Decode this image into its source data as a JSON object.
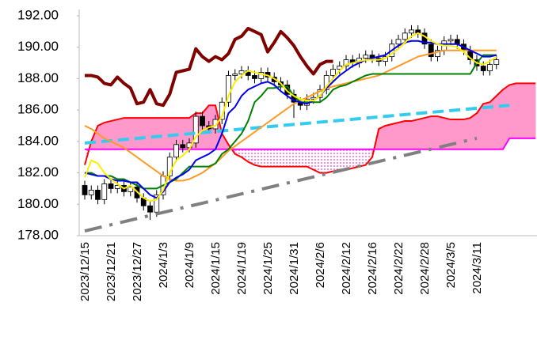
{
  "chart_data": {
    "type": "candlestick",
    "categories": [
      "2023/12/15",
      null,
      null,
      null,
      "2023/12/21",
      null,
      null,
      null,
      "2023/12/27",
      null,
      null,
      null,
      "2024/1/3",
      null,
      null,
      null,
      "2024/1/9",
      null,
      null,
      null,
      "2024/1/15",
      null,
      null,
      null,
      "2024/1/19",
      null,
      null,
      null,
      "2024/1/25",
      null,
      null,
      null,
      "2024/1/31",
      null,
      null,
      null,
      "2024/2/6",
      null,
      null,
      null,
      "2024/2/12",
      null,
      null,
      null,
      "2024/2/16",
      null,
      null,
      null,
      "2024/2/22",
      null,
      null,
      null,
      "2024/2/28",
      null,
      null,
      null,
      "2024/3/5",
      null,
      null,
      null,
      "2024/3/11",
      null,
      null,
      null,
      null,
      null,
      null,
      null,
      null,
      null
    ],
    "ylim": [
      178,
      192
    ],
    "yticks": [
      {
        "value": 178,
        "label": "178.00"
      },
      {
        "value": 180,
        "label": "180.00"
      },
      {
        "value": 182,
        "label": "182.00"
      },
      {
        "value": 184,
        "label": "184.00"
      },
      {
        "value": 186,
        "label": "186.00"
      },
      {
        "value": 188,
        "label": "188.00"
      },
      {
        "value": 190,
        "label": "190.00"
      },
      {
        "value": 192,
        "label": "192.00"
      }
    ],
    "candles": {
      "up_color": "#ffffff",
      "down_color": "#000000",
      "edge_color": "#000000",
      "open": [
        181.2,
        180.6,
        180.9,
        180.3,
        181.3,
        181.0,
        181.2,
        180.8,
        181.1,
        180.4,
        179.9,
        179.5,
        180.6,
        181.8,
        183.0,
        183.8,
        183.6,
        183.9,
        185.6,
        185.0,
        184.8,
        185.4,
        186.5,
        188.2,
        188.3,
        188.5,
        188.2,
        188.0,
        188.4,
        188.1,
        187.8,
        187.6,
        187.0,
        186.5,
        186.3,
        186.7,
        186.8,
        187.3,
        188.2,
        188.6,
        188.8,
        189.2,
        189.0,
        189.3,
        189.5,
        189.3,
        189.1,
        189.4,
        190.2,
        190.5,
        190.9,
        191.1,
        190.9,
        190.2,
        189.4,
        189.8,
        190.4,
        190.5,
        190.2,
        189.8,
        189.2,
        188.8,
        188.5,
        188.9,
        null,
        null,
        null,
        null,
        null,
        null
      ],
      "high": [
        181.5,
        181.2,
        181.2,
        181.6,
        181.6,
        181.5,
        181.5,
        181.4,
        181.4,
        180.7,
        180.2,
        180.9,
        182.1,
        183.3,
        184.1,
        184.1,
        184.2,
        185.9,
        185.9,
        185.3,
        185.7,
        186.8,
        188.5,
        188.6,
        188.8,
        188.8,
        188.5,
        188.7,
        188.7,
        188.4,
        188.1,
        187.9,
        187.3,
        186.8,
        187.0,
        187.1,
        187.6,
        188.5,
        188.9,
        189.1,
        189.5,
        189.5,
        189.6,
        189.8,
        189.8,
        189.6,
        189.7,
        190.5,
        190.8,
        191.2,
        191.4,
        191.4,
        191.2,
        190.5,
        190.1,
        190.7,
        190.8,
        190.8,
        190.5,
        190.1,
        189.5,
        189.1,
        189.2,
        189.5,
        null,
        null,
        null,
        null,
        null,
        null
      ],
      "low": [
        180.3,
        180.3,
        180.0,
        180.0,
        180.7,
        180.7,
        180.5,
        180.5,
        180.1,
        179.6,
        179.0,
        179.2,
        180.3,
        181.5,
        182.7,
        183.3,
        183.3,
        183.6,
        184.7,
        184.5,
        184.5,
        185.1,
        186.2,
        187.9,
        188.0,
        187.9,
        187.7,
        187.7,
        187.8,
        187.5,
        187.3,
        186.7,
        185.5,
        186.0,
        186.0,
        186.4,
        186.5,
        187.0,
        187.9,
        188.3,
        188.5,
        188.7,
        188.7,
        189.0,
        189.0,
        188.8,
        188.8,
        189.1,
        189.9,
        190.2,
        190.6,
        190.6,
        189.9,
        189.1,
        189.1,
        189.5,
        190.1,
        189.9,
        189.5,
        188.9,
        188.5,
        188.2,
        188.2,
        188.6,
        null,
        null,
        null,
        null,
        null,
        null
      ],
      "close": [
        180.6,
        180.9,
        180.3,
        181.3,
        181.0,
        181.2,
        180.8,
        181.1,
        180.4,
        179.9,
        179.5,
        180.6,
        181.8,
        183.0,
        183.8,
        183.6,
        183.9,
        185.6,
        185.0,
        184.8,
        185.4,
        186.5,
        188.2,
        188.3,
        188.5,
        188.2,
        188.0,
        188.4,
        188.1,
        187.8,
        187.6,
        187.0,
        186.5,
        186.3,
        186.7,
        186.8,
        187.3,
        188.2,
        188.6,
        188.8,
        189.2,
        189.0,
        189.3,
        189.5,
        189.3,
        189.1,
        189.4,
        190.2,
        190.5,
        190.9,
        191.1,
        190.9,
        190.2,
        189.4,
        189.8,
        190.4,
        190.5,
        190.2,
        189.8,
        189.2,
        188.8,
        188.5,
        188.9,
        189.2,
        null,
        null,
        null,
        null,
        null,
        null
      ]
    },
    "cloud": {
      "fill_color": "#ff99cc",
      "dot_color": "#ff33cc",
      "span_a": {
        "color": "#ff0000",
        "values": [
          182.5,
          184.0,
          185.0,
          185.2,
          185.3,
          185.4,
          185.5,
          185.5,
          185.5,
          185.5,
          185.5,
          185.5,
          185.5,
          185.5,
          185.5,
          185.5,
          185.5,
          185.8,
          185.8,
          186.3,
          186.3,
          184.5,
          183.8,
          183.2,
          183.0,
          182.7,
          182.5,
          182.4,
          182.4,
          182.4,
          182.4,
          182.4,
          182.4,
          182.4,
          182.4,
          182.2,
          182.0,
          182.0,
          182.1,
          182.2,
          182.2,
          182.3,
          182.4,
          182.5,
          183.0,
          184.8,
          185.0,
          185.1,
          185.2,
          185.3,
          185.3,
          185.4,
          185.5,
          185.6,
          185.6,
          185.5,
          185.4,
          185.4,
          185.4,
          185.5,
          185.8,
          186.4,
          186.5,
          186.9,
          187.3,
          187.6,
          187.7,
          187.7,
          187.7,
          187.7
        ]
      },
      "span_b": {
        "color": "#ff00ff",
        "values": [
          183.5,
          183.5,
          183.5,
          183.5,
          183.5,
          183.5,
          183.5,
          183.5,
          183.5,
          183.5,
          183.5,
          183.5,
          183.5,
          183.5,
          183.5,
          183.5,
          183.5,
          183.5,
          183.5,
          183.5,
          183.5,
          183.5,
          183.5,
          183.5,
          183.5,
          183.5,
          183.5,
          183.5,
          183.5,
          183.5,
          183.5,
          183.5,
          183.5,
          183.5,
          183.5,
          183.5,
          183.5,
          183.5,
          183.5,
          183.5,
          183.5,
          183.5,
          183.5,
          183.5,
          183.5,
          183.5,
          183.5,
          183.5,
          183.5,
          183.5,
          183.5,
          183.5,
          183.5,
          183.5,
          183.5,
          183.5,
          183.5,
          183.5,
          183.5,
          183.5,
          183.5,
          183.5,
          183.5,
          183.5,
          183.5,
          184.2,
          184.2,
          184.2,
          184.2,
          184.2
        ]
      }
    },
    "trendlines": [
      {
        "color": "#33ccee",
        "dash": "dash",
        "x": [
          0,
          65
        ],
        "values": [
          183.9,
          186.3
        ]
      },
      {
        "color": "#808080",
        "dash": "dashdot",
        "x": [
          0,
          60
        ],
        "values": [
          178.3,
          184.2
        ]
      }
    ],
    "series": [
      {
        "color": "#800000",
        "width": 4,
        "values": [
          188.2,
          188.2,
          188.1,
          187.7,
          187.6,
          188.1,
          187.7,
          187.4,
          186.4,
          186.5,
          187.3,
          186.4,
          186.3,
          187.0,
          188.4,
          188.5,
          188.6,
          189.9,
          189.4,
          189.1,
          189.4,
          189.2,
          189.6,
          190.5,
          190.7,
          191.2,
          191.0,
          190.8,
          189.7,
          190.3,
          191.0,
          190.6,
          190.1,
          189.4,
          188.8,
          188.3,
          188.9,
          189.1,
          189.1,
          null,
          null,
          null,
          null,
          null,
          null,
          null,
          null,
          null,
          null,
          null,
          null,
          null,
          null,
          null,
          null,
          null,
          null,
          null,
          null,
          null,
          null,
          null,
          null,
          null,
          null,
          null,
          null,
          null,
          null,
          null
        ]
      },
      {
        "color": "#ff9922",
        "width": 2,
        "values": [
          185.0,
          184.8,
          184.5,
          184.2,
          184.0,
          183.8,
          183.6,
          183.3,
          183.0,
          182.7,
          182.4,
          182.1,
          181.8,
          181.6,
          181.5,
          181.5,
          181.6,
          181.8,
          182.0,
          182.3,
          182.6,
          183.0,
          183.4,
          183.7,
          184.0,
          184.3,
          184.6,
          184.9,
          185.2,
          185.5,
          185.8,
          186.1,
          186.4,
          186.6,
          186.8,
          187.0,
          187.2,
          187.4,
          187.5,
          187.6,
          187.7,
          187.8,
          187.9,
          188.0,
          188.1,
          188.2,
          188.4,
          188.6,
          188.8,
          189.0,
          189.2,
          189.4,
          189.5,
          189.6,
          189.7,
          189.8,
          189.8,
          189.8,
          189.8,
          189.8,
          189.8,
          189.8,
          189.8,
          189.8,
          null,
          null,
          null,
          null,
          null,
          null
        ]
      },
      {
        "color": "#008000",
        "width": 2,
        "values": [
          182.0,
          182.0,
          181.8,
          181.8,
          181.8,
          181.6,
          181.6,
          181.4,
          181.2,
          181.0,
          181.0,
          181.0,
          181.2,
          181.4,
          181.6,
          182.0,
          182.4,
          182.4,
          182.4,
          182.4,
          182.6,
          183.2,
          183.5,
          184.0,
          184.5,
          185.3,
          186.5,
          186.9,
          187.4,
          187.4,
          187.5,
          187.5,
          186.9,
          186.5,
          186.5,
          186.5,
          186.5,
          186.8,
          187.3,
          187.5,
          187.6,
          187.8,
          188.0,
          188.2,
          188.3,
          188.3,
          188.3,
          188.3,
          188.3,
          188.3,
          188.3,
          188.3,
          188.3,
          188.3,
          188.3,
          188.3,
          188.3,
          188.3,
          188.3,
          188.3,
          189.0,
          189.5,
          189.5,
          189.5,
          null,
          null,
          null,
          null,
          null,
          null
        ]
      },
      {
        "color": "#0000ee",
        "width": 2,
        "values": [
          182.0,
          181.9,
          181.8,
          181.8,
          181.6,
          181.5,
          181.5,
          181.4,
          181.4,
          181.0,
          180.6,
          180.4,
          180.8,
          181.4,
          181.7,
          181.9,
          182.2,
          182.8,
          183.0,
          183.2,
          183.5,
          184.5,
          185.8,
          186.2,
          186.9,
          187.3,
          187.5,
          187.7,
          187.8,
          187.6,
          187.2,
          186.9,
          186.6,
          186.5,
          186.4,
          186.6,
          186.9,
          187.4,
          187.8,
          188.2,
          188.5,
          188.8,
          189.0,
          189.2,
          189.3,
          189.4,
          189.5,
          189.8,
          190.1,
          190.3,
          190.4,
          190.4,
          190.3,
          190.3,
          190.2,
          190.2,
          190.2,
          190.2,
          190.0,
          189.8,
          189.6,
          189.4,
          189.4,
          189.5,
          null,
          null,
          null,
          null,
          null,
          null
        ]
      },
      {
        "color": "#ffee00",
        "width": 2,
        "values": [
          181.7,
          182.8,
          182.6,
          182.0,
          181.6,
          181.3,
          181.0,
          181.2,
          180.8,
          180.4,
          180.2,
          180.3,
          180.9,
          182.0,
          182.8,
          183.1,
          183.5,
          184.3,
          184.7,
          184.9,
          185.0,
          185.6,
          186.9,
          187.8,
          188.2,
          188.5,
          188.4,
          188.3,
          188.2,
          188.0,
          187.7,
          187.2,
          186.9,
          186.7,
          186.6,
          186.6,
          186.9,
          187.5,
          188.0,
          188.5,
          188.9,
          189.0,
          189.1,
          189.2,
          189.2,
          189.2,
          189.3,
          189.6,
          189.9,
          190.3,
          190.7,
          190.9,
          190.7,
          190.4,
          190.2,
          190.1,
          190.1,
          190.0,
          189.7,
          189.3,
          189.0,
          188.9,
          189.1,
          189.4,
          null,
          null,
          null,
          null,
          null,
          null
        ]
      }
    ]
  }
}
